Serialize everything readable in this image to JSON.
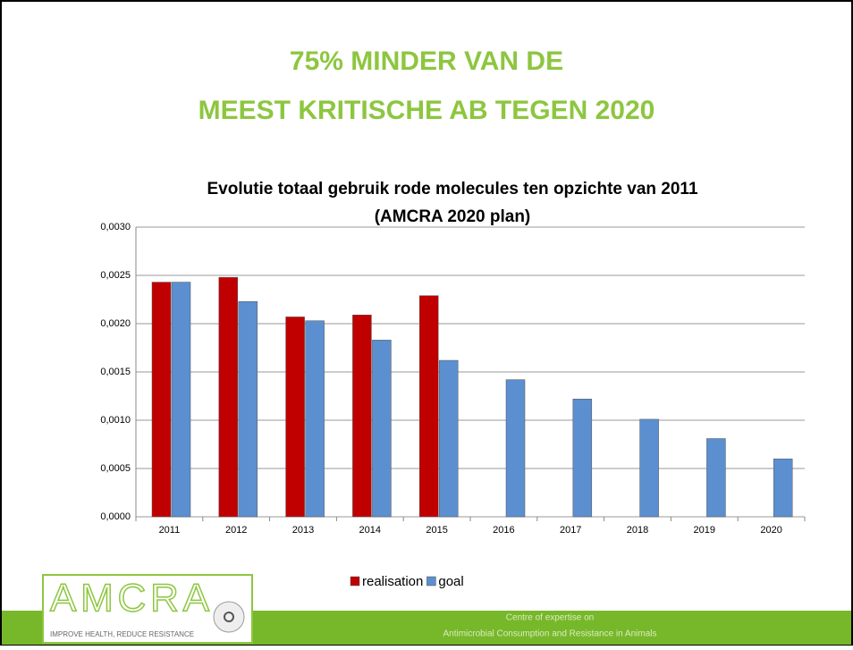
{
  "slide_title": [
    "75% MINDER VAN DE",
    "MEEST KRITISCHE AB TEGEN 2020"
  ],
  "chart_data": {
    "type": "bar",
    "title": [
      "Evolutie totaal gebruik rode molecules ten opzichte van 2011",
      "(AMCRA 2020 plan)"
    ],
    "categories": [
      "2011",
      "2012",
      "2013",
      "2014",
      "2015",
      "2016",
      "2017",
      "2018",
      "2019",
      "2020"
    ],
    "series": [
      {
        "name": "realisation",
        "color": "#c00000",
        "values": [
          0.00243,
          0.00248,
          0.00207,
          0.00209,
          0.00229,
          null,
          null,
          null,
          null,
          null
        ]
      },
      {
        "name": "goal",
        "color": "#5b8fd0",
        "values": [
          0.00243,
          0.00223,
          0.00203,
          0.00183,
          0.00162,
          0.00142,
          0.00122,
          0.00101,
          0.00081,
          0.0006
        ]
      }
    ],
    "ylim": [
      0,
      0.003
    ],
    "yticks": [
      {
        "value": 0,
        "label": "0,0000"
      },
      {
        "value": 0.0005,
        "label": "0,0005"
      },
      {
        "value": 0.001,
        "label": "0,0010"
      },
      {
        "value": 0.0015,
        "label": "0,0015"
      },
      {
        "value": 0.002,
        "label": "0,0020"
      },
      {
        "value": 0.0025,
        "label": "0,0025"
      },
      {
        "value": 0.003,
        "label": "0,0030"
      }
    ],
    "grid": true,
    "legend": "bottom"
  },
  "logo": {
    "name": "AMCRA",
    "tagline": "IMPROVE HEALTH, REDUCE RESISTANCE"
  },
  "footer": [
    "Centre of expertise on",
    "Antimicrobial Consumption and Resistance in Animals"
  ]
}
